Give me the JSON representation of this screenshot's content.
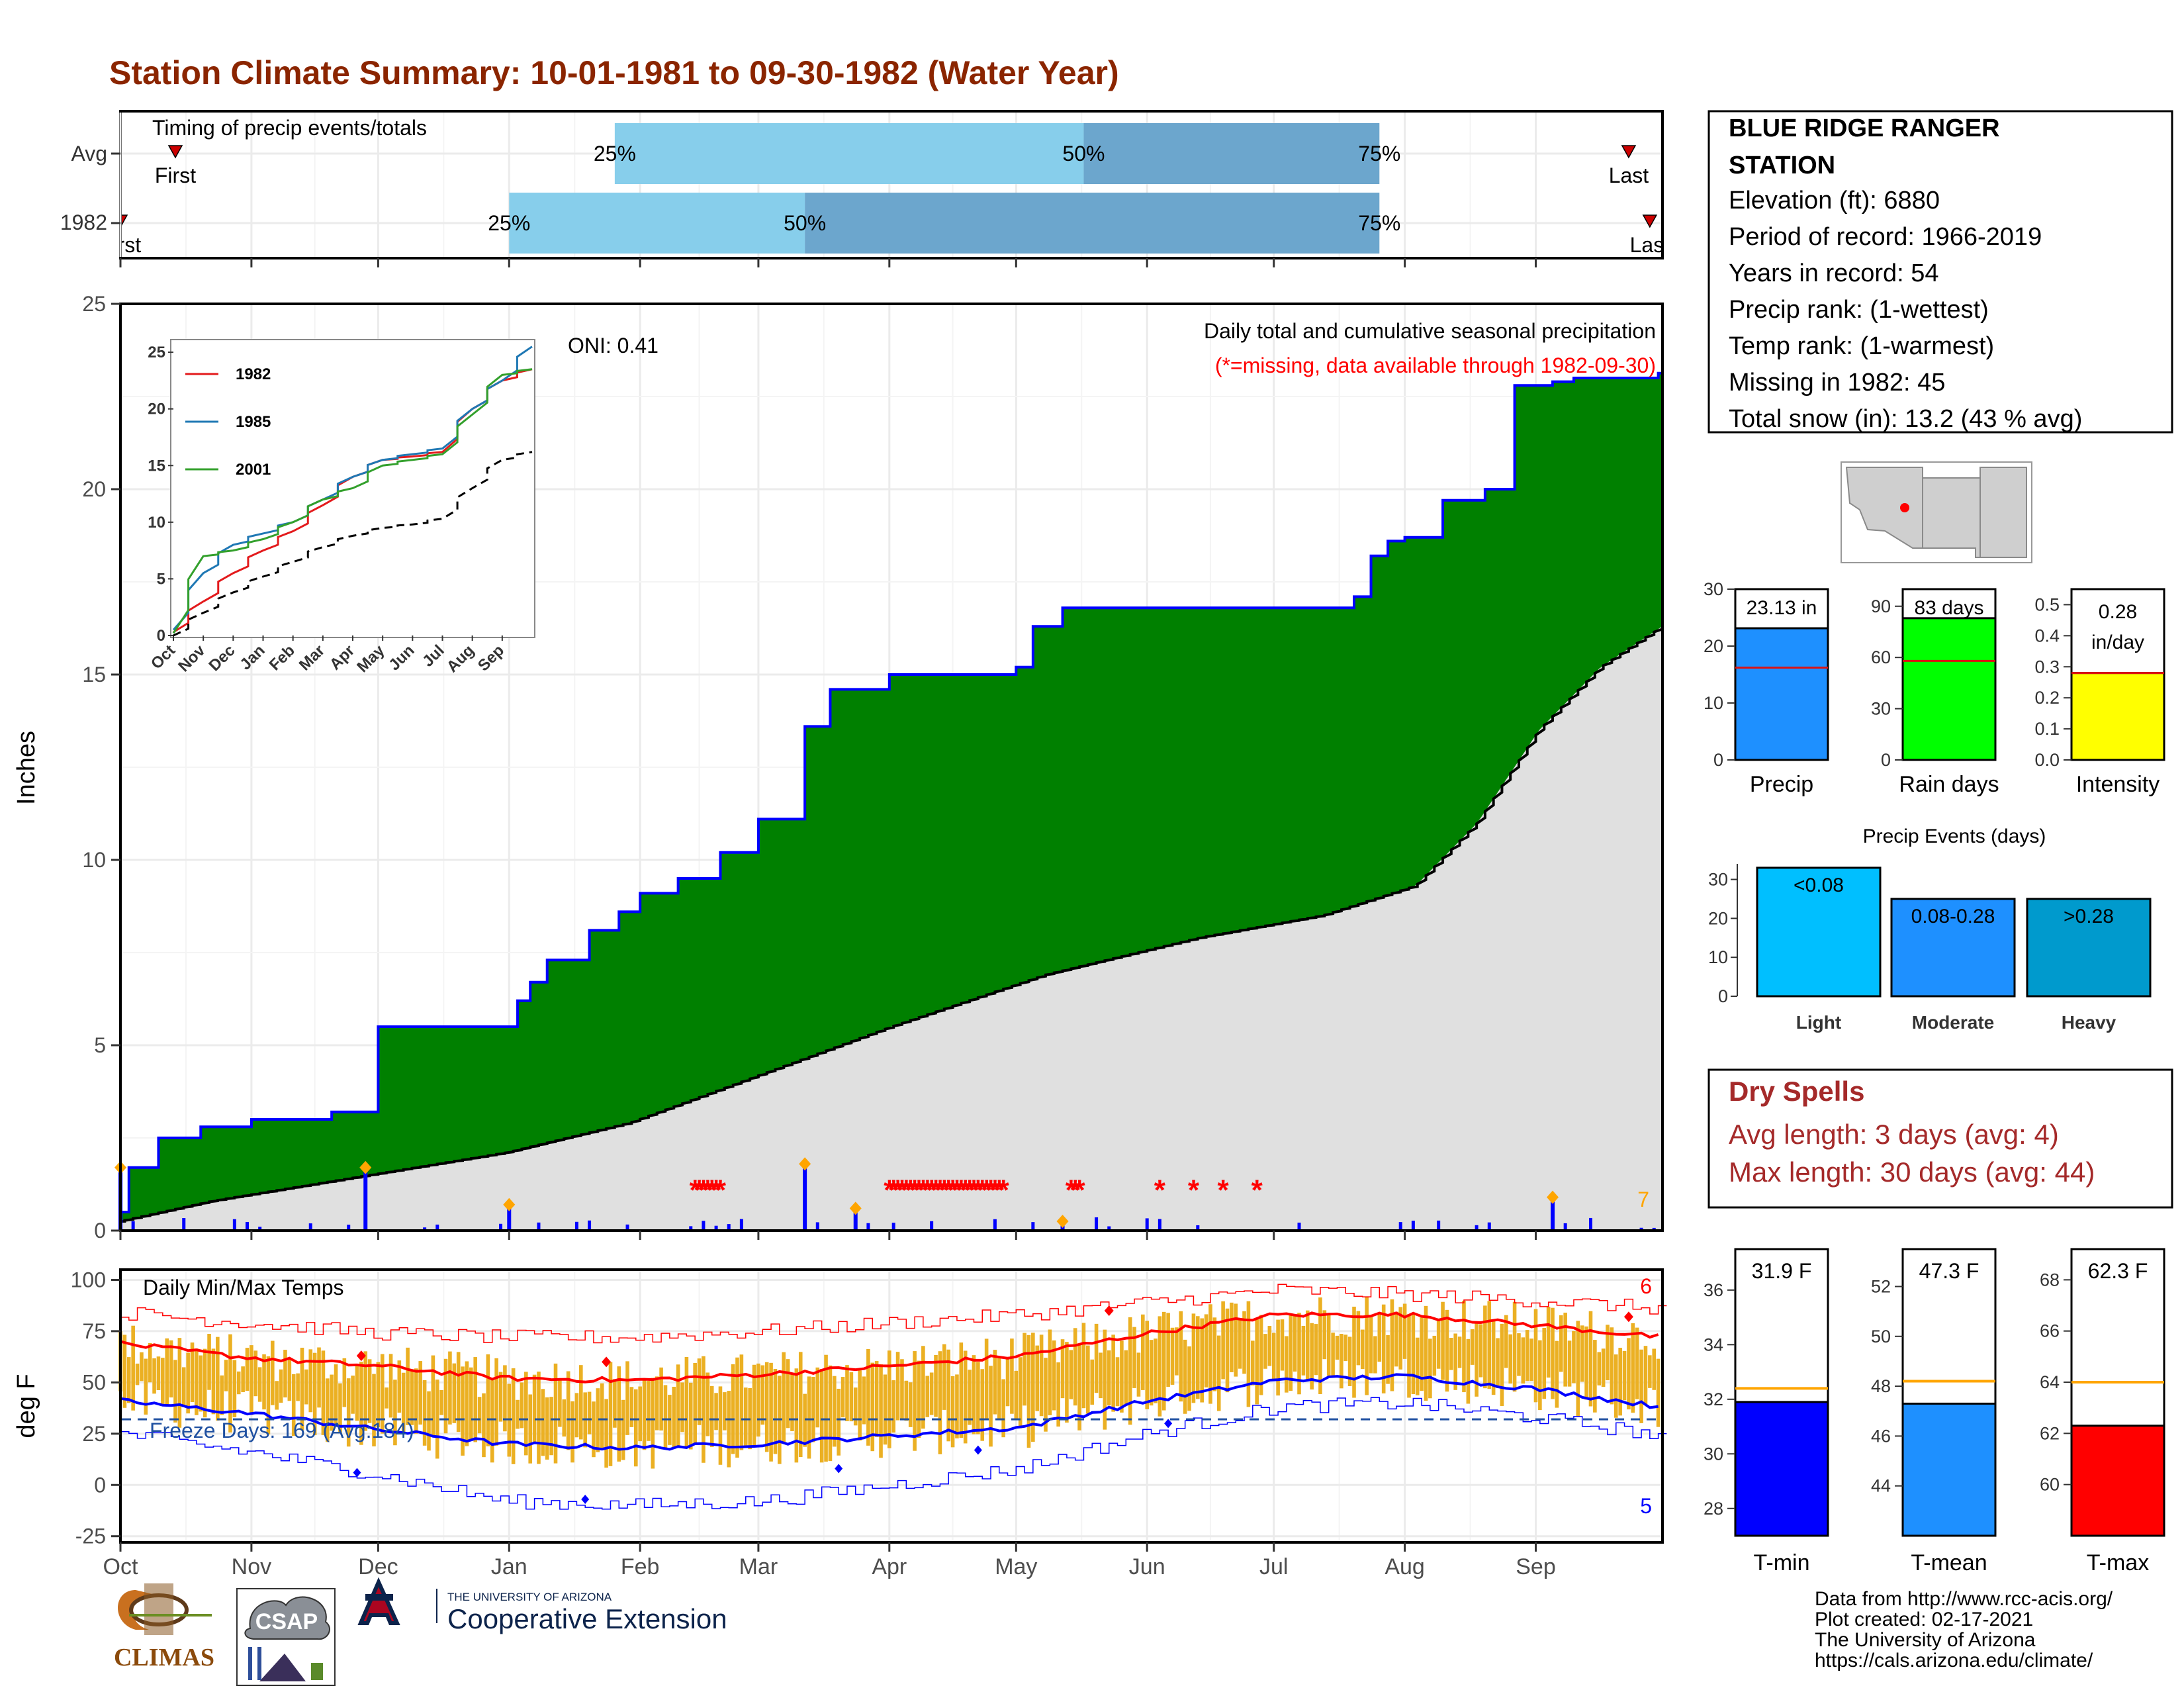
{
  "title": "Station Climate Summary: 10-01-1981 to 09-30-1982 (Water Year)",
  "colors": {
    "title": "#8B2500",
    "precip_fill": "#008000",
    "avg_fill": "#E0E0E0",
    "cum_line": "#0000FF",
    "bar_light": "#87CEEB",
    "bar_dark": "#6CA6CD",
    "temp_bar": "#EBB023",
    "tmax_line": "#FF0000",
    "tmin_line": "#0000FF",
    "dry_spell": "#A52A2A",
    "light": "#00BFFF",
    "moderate": "#1E90FF",
    "heavy": "#009ACD"
  },
  "timing": {
    "label": "Timing of precip events/totals",
    "rows": [
      {
        "label": "Avg",
        "first_label": "First",
        "last_label": "Last",
        "p25": "25%",
        "p50": "50%",
        "p75": "75%",
        "first_date": "1981-10-14",
        "last_date": "1982-09-23",
        "p25_date": "1982-01-26",
        "p50_date": "1982-05-17",
        "p75_date": "1982-07-26"
      },
      {
        "label": "1982",
        "first_label": "First",
        "last_label": "Last",
        "p25": "25%",
        "p50": "50%",
        "p75": "75%",
        "first_date": "1981-10-01",
        "last_date": "1982-09-28",
        "p25_date": "1982-01-01",
        "p50_date": "1982-03-12",
        "p75_date": "1982-07-26"
      }
    ]
  },
  "precip_panel": {
    "ylabel": "Inches",
    "subtitle": "Daily total and cumulative seasonal precipitation",
    "missing_note": "(*=missing, data available through 1982-09-30)",
    "oni": "ONI: 0.41",
    "corner_count": "7",
    "y_ticks": [
      "0",
      "5",
      "10",
      "15",
      "20",
      "25"
    ]
  },
  "inset": {
    "x_ticks": [
      "Oct",
      "Nov",
      "Dec",
      "Jan",
      "Feb",
      "Mar",
      "Apr",
      "May",
      "Jun",
      "Jul",
      "Aug",
      "Sep"
    ],
    "y_ticks": [
      "0",
      "5",
      "10",
      "15",
      "20",
      "25"
    ],
    "legend": [
      {
        "name": "1982",
        "color": "#E31A1C"
      },
      {
        "name": "1985",
        "color": "#1F78B4"
      },
      {
        "name": "2001",
        "color": "#33A02C"
      }
    ]
  },
  "temp_panel": {
    "ylabel": "deg F",
    "label": "Daily Min/Max Temps",
    "freeze": "Freeze Days: 169 (Avg:184)",
    "max_count": "6",
    "min_count": "5",
    "y_ticks": [
      "-25",
      "0",
      "25",
      "50",
      "75",
      "100"
    ]
  },
  "x_axis": [
    "Oct",
    "Nov",
    "Dec",
    "Jan",
    "Feb",
    "Mar",
    "Apr",
    "May",
    "Jun",
    "Jul",
    "Aug",
    "Sep"
  ],
  "station": {
    "name_line1": "BLUE RIDGE RANGER",
    "name_line2": "STATION",
    "lines": [
      "Elevation (ft): 6880",
      "Period of record: 1966-2019",
      "Years in record: 54",
      "Precip rank:  (1-wettest)",
      "Temp rank:  (1-warmest)",
      "Missing in 1982: 45",
      "Total snow (in): 13.2 (43 % avg)"
    ]
  },
  "summary_bars": [
    {
      "label": "Precip",
      "value_label": "23.13 in",
      "value": 23.13,
      "avg": 16.2,
      "ymax": 30,
      "ticks": [
        "0",
        "10",
        "20",
        "30"
      ],
      "color": "#1E90FF"
    },
    {
      "label": "Rain days",
      "value_label": "83 days",
      "value": 83,
      "avg": 58,
      "ymax": 100,
      "ticks": [
        "0",
        "30",
        "60",
        "90"
      ],
      "color": "#00FF00"
    },
    {
      "label": "Intensity",
      "value_label": "0.28 in/day",
      "value": 0.28,
      "avg": 0.28,
      "ymax": 0.55,
      "ticks": [
        "0.0",
        "0.1",
        "0.2",
        "0.3",
        "0.4",
        "0.5"
      ],
      "color": "#FFFF00"
    }
  ],
  "events": {
    "title": "Precip Events (days)",
    "y_ticks": [
      "0",
      "10",
      "20",
      "30"
    ],
    "bars": [
      {
        "label": "Light",
        "bar_label": "<0.08",
        "value": 33,
        "color": "#00BFFF"
      },
      {
        "label": "Moderate",
        "bar_label": "0.08-0.28",
        "value": 25,
        "color": "#1E90FF"
      },
      {
        "label": "Heavy",
        "bar_label": ">0.28",
        "value": 25,
        "color": "#009ACD"
      }
    ]
  },
  "dry_spells": {
    "title": "Dry Spells",
    "avg": "Avg length: 3 days (avg: 4)",
    "max": "Max length: 30 days (avg: 44)"
  },
  "temp_bars": [
    {
      "label": "T-min",
      "value_label": "31.9 F",
      "value": 31.9,
      "avg": 32.4,
      "ymin": 27,
      "ymax": 37.5,
      "ticks": [
        "28",
        "30",
        "32",
        "34",
        "36"
      ],
      "tick_values": [
        28,
        30,
        32,
        34,
        36
      ],
      "color": "#0000FF"
    },
    {
      "label": "T-mean",
      "value_label": "47.3 F",
      "value": 47.3,
      "avg": 48.2,
      "ymin": 42,
      "ymax": 53.5,
      "ticks": [
        "44",
        "46",
        "48",
        "50",
        "52"
      ],
      "tick_values": [
        44,
        46,
        48,
        50,
        52
      ],
      "color": "#1E90FF"
    },
    {
      "label": "T-max",
      "value_label": "62.3 F",
      "value": 62.3,
      "avg": 64.0,
      "ymin": 58,
      "ymax": 69.2,
      "ticks": [
        "60",
        "62",
        "64",
        "66",
        "68"
      ],
      "tick_values": [
        60,
        62,
        64,
        66,
        68
      ],
      "color": "#FF0000"
    }
  ],
  "credits": [
    "Data from http://www.rcc-acis.org/",
    "Plot created: 02-17-2021",
    "The University of Arizona",
    "https://cals.arizona.edu/climate/"
  ],
  "logos": {
    "climas": "CLIMAS",
    "csap": "CSAP",
    "ua_small": "THE UNIVERSITY OF ARIZONA",
    "ua_big": "Cooperative Extension"
  },
  "chart_data": [
    {
      "type": "area",
      "title": "Daily total and cumulative seasonal precipitation",
      "ylabel": "Inches",
      "ylim": [
        0,
        25
      ],
      "x": [
        "1981-10-01",
        "1981-10-03",
        "1981-10-10",
        "1981-10-20",
        "1981-11-01",
        "1981-11-10",
        "1981-11-20",
        "1981-11-28",
        "1981-12-01",
        "1982-01-01",
        "1982-01-03",
        "1982-01-06",
        "1982-01-10",
        "1982-01-20",
        "1982-01-27",
        "1982-02-01",
        "1982-02-10",
        "1982-02-20",
        "1982-03-01",
        "1982-03-06",
        "1982-03-12",
        "1982-03-18",
        "1982-03-25",
        "1982-04-01",
        "1982-04-15",
        "1982-05-01",
        "1982-05-05",
        "1982-05-12",
        "1982-06-01",
        "1982-07-01",
        "1982-07-20",
        "1982-07-24",
        "1982-07-28",
        "1982-08-01",
        "1982-08-10",
        "1982-08-20",
        "1982-08-27",
        "1982-09-05",
        "1982-09-10",
        "1982-09-30"
      ],
      "series": [
        {
          "name": "",
          "values": [
            0.5,
            1.7,
            2.5,
            2.8,
            3.0,
            3.0,
            3.2,
            3.2,
            5.5,
            5.5,
            6.2,
            6.7,
            7.3,
            8.1,
            8.6,
            9.1,
            9.5,
            10.2,
            11.1,
            11.1,
            13.6,
            14.6,
            14.6,
            15.0,
            15.0,
            15.2,
            16.3,
            16.8,
            16.8,
            16.8,
            17.1,
            18.2,
            18.6,
            18.7,
            19.7,
            20.0,
            22.8,
            22.9,
            23.0,
            23.13
          ]
        }
      ],
      "daily_peaks": [
        {
          "date": "1981-10-01",
          "value": 1.7
        },
        {
          "date": "1981-11-28",
          "value": 1.7
        },
        {
          "date": "1982-01-01",
          "value": 0.7
        },
        {
          "date": "1982-03-12",
          "value": 1.8
        },
        {
          "date": "1982-03-24",
          "value": 0.6
        },
        {
          "date": "1982-05-12",
          "value": 0.25
        },
        {
          "date": "1982-09-05",
          "value": 0.9
        }
      ],
      "missing_dates": [
        "1982-02-14",
        "1982-02-15",
        "1982-02-16",
        "1982-02-17",
        "1982-02-18",
        "1982-02-19",
        "1982-02-20",
        "1982-04-01",
        "1982-04-02",
        "1982-04-03",
        "1982-04-04",
        "1982-04-05",
        "1982-04-06",
        "1982-04-07",
        "1982-04-08",
        "1982-04-09",
        "1982-04-10",
        "1982-04-11",
        "1982-04-12",
        "1982-04-13",
        "1982-04-14",
        "1982-04-15",
        "1982-04-16",
        "1982-04-17",
        "1982-04-18",
        "1982-04-19",
        "1982-04-20",
        "1982-04-21",
        "1982-04-22",
        "1982-04-23",
        "1982-04-24",
        "1982-04-25",
        "1982-04-26",
        "1982-04-27",
        "1982-04-28",
        "1982-05-14",
        "1982-05-15",
        "1982-05-16",
        "1982-06-04",
        "1982-06-12",
        "1982-06-19",
        "1982-06-27"
      ]
    },
    {
      "type": "line",
      "title": "",
      "ylim": [
        0,
        25
      ],
      "categories": [
        "Oct",
        "Nov",
        "Dec",
        "Jan",
        "Feb",
        "Mar",
        "Apr",
        "May",
        "Jun",
        "Jul",
        "Aug",
        "Sep"
      ],
      "x": [
        0,
        1,
        2,
        3,
        4,
        5,
        6,
        7,
        8,
        9,
        10,
        11,
        12
      ],
      "series": [
        {
          "name": "1982",
          "values": [
            0.3,
            3.0,
            5.5,
            7.5,
            9.2,
            11.5,
            14.0,
            15.5,
            15.8,
            16.2,
            20.0,
            22.5,
            23.5
          ]
        },
        {
          "name": "1985",
          "values": [
            0.5,
            5.5,
            8.0,
            9.0,
            10.0,
            12.0,
            14.0,
            15.5,
            16.0,
            16.5,
            20.0,
            22.5,
            25.5
          ]
        },
        {
          "name": "2001",
          "values": [
            0.2,
            7.0,
            7.5,
            8.5,
            10.0,
            12.0,
            13.0,
            15.0,
            15.5,
            16.0,
            19.5,
            23.0,
            23.5
          ]
        },
        {
          "name": "",
          "values": [
            0.0,
            2.0,
            3.8,
            5.2,
            6.5,
            7.8,
            8.8,
            9.5,
            9.8,
            10.3,
            13.0,
            15.5,
            16.2
          ]
        }
      ]
    },
    {
      "type": "line",
      "title": "Daily Min/Max Temps",
      "ylabel": "deg F",
      "ylim": [
        -25,
        100
      ],
      "x": [
        "Oct",
        "Nov",
        "Dec",
        "Jan",
        "Feb",
        "Mar",
        "Apr",
        "May",
        "Jun",
        "Jul",
        "Aug",
        "Sep",
        "Oct"
      ],
      "series": [
        {
          "name": "",
          "values": [
            69,
            62,
            58,
            52,
            51,
            54,
            58,
            63,
            74,
            83,
            83,
            78,
            72
          ]
        },
        {
          "name": "",
          "values": [
            41,
            35,
            27,
            20,
            18,
            20,
            24,
            28,
            41,
            51,
            53,
            47,
            38
          ]
        },
        {
          "name": "",
          "values": [
            84,
            79,
            74,
            72,
            72,
            75,
            79,
            83,
            89,
            95,
            93,
            90,
            86
          ]
        },
        {
          "name": "",
          "values": [
            25,
            16,
            5,
            -8,
            -10,
            -8,
            0,
            8,
            25,
            38,
            40,
            33,
            24
          ]
        }
      ],
      "freeze_line": 32
    }
  ]
}
